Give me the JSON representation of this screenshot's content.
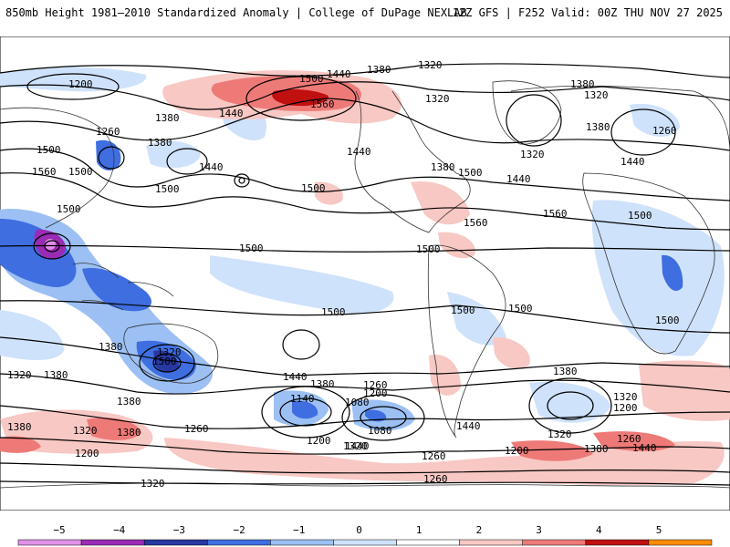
{
  "header": {
    "title": "850mb Height 1981–2010 Standardized Anomaly | College of DuPage NEXLAB",
    "run": "12Z GFS | F252 Valid: 00Z THU NOV 27 2025"
  },
  "contour_labels": [
    {
      "id": "c1",
      "text": "1200"
    },
    {
      "id": "c2",
      "text": "1260"
    },
    {
      "id": "c3",
      "text": "1380"
    },
    {
      "id": "c4",
      "text": "1500"
    },
    {
      "id": "c5",
      "text": "1560"
    },
    {
      "id": "c6",
      "text": "1500"
    },
    {
      "id": "c7",
      "text": "1380"
    },
    {
      "id": "c8",
      "text": "1440"
    },
    {
      "id": "c9",
      "text": "1500"
    },
    {
      "id": "c10",
      "text": "1440"
    },
    {
      "id": "c11",
      "text": "1380"
    },
    {
      "id": "c12",
      "text": "1320"
    },
    {
      "id": "c13",
      "text": "1500"
    },
    {
      "id": "c14",
      "text": "1560"
    },
    {
      "id": "c15",
      "text": "1440"
    },
    {
      "id": "c16",
      "text": "1440"
    },
    {
      "id": "c17",
      "text": "1320"
    },
    {
      "id": "c18",
      "text": "1380"
    },
    {
      "id": "c19",
      "text": "1500"
    },
    {
      "id": "c20",
      "text": "1440"
    },
    {
      "id": "c21",
      "text": "1560"
    },
    {
      "id": "c22",
      "text": "1380"
    },
    {
      "id": "c23",
      "text": "1320"
    },
    {
      "id": "c24",
      "text": "1320"
    },
    {
      "id": "c25",
      "text": "1380"
    },
    {
      "id": "c26",
      "text": "1260"
    },
    {
      "id": "c27",
      "text": "1440"
    },
    {
      "id": "c28",
      "text": "1560"
    },
    {
      "id": "c29",
      "text": "1500"
    },
    {
      "id": "c30",
      "text": "1500"
    },
    {
      "id": "c31",
      "text": "1500"
    },
    {
      "id": "c32",
      "text": "1500"
    },
    {
      "id": "c33",
      "text": "1500"
    },
    {
      "id": "c34",
      "text": "1500"
    },
    {
      "id": "c35",
      "text": "1500"
    },
    {
      "id": "c36",
      "text": "1500"
    },
    {
      "id": "c37",
      "text": "1500"
    },
    {
      "id": "c38",
      "text": "1380"
    },
    {
      "id": "c39",
      "text": "1320"
    },
    {
      "id": "c40",
      "text": "1500"
    },
    {
      "id": "c41",
      "text": "1440"
    },
    {
      "id": "c42",
      "text": "1380"
    },
    {
      "id": "c43",
      "text": "1260"
    },
    {
      "id": "c44",
      "text": "1200"
    },
    {
      "id": "c45",
      "text": "1140"
    },
    {
      "id": "c46",
      "text": "1080"
    },
    {
      "id": "c47",
      "text": "1080"
    },
    {
      "id": "c48",
      "text": "1200"
    },
    {
      "id": "c49",
      "text": "1320"
    },
    {
      "id": "c50",
      "text": "1440"
    },
    {
      "id": "c51",
      "text": "1380"
    },
    {
      "id": "c52",
      "text": "1320"
    },
    {
      "id": "c53",
      "text": "1200"
    },
    {
      "id": "c54",
      "text": "1320"
    },
    {
      "id": "c55",
      "text": "1380"
    },
    {
      "id": "c56",
      "text": "1440"
    },
    {
      "id": "c57",
      "text": "1260"
    },
    {
      "id": "c58",
      "text": "1380"
    },
    {
      "id": "c59",
      "text": "1260"
    },
    {
      "id": "c60",
      "text": "1320"
    },
    {
      "id": "c61",
      "text": "1260"
    },
    {
      "id": "c62",
      "text": "1200"
    },
    {
      "id": "c63",
      "text": "1380"
    },
    {
      "id": "c64",
      "text": "1320"
    },
    {
      "id": "c65",
      "text": "1260"
    },
    {
      "id": "c66",
      "text": "1320"
    },
    {
      "id": "c67",
      "text": "1380"
    },
    {
      "id": "c68",
      "text": "1200"
    },
    {
      "id": "c69",
      "text": "1440"
    },
    {
      "id": "c70",
      "text": "1380"
    }
  ],
  "colorbar": {
    "ticks": [
      "−5",
      "−4",
      "−3",
      "−2",
      "−1",
      "0",
      "1",
      "2",
      "3",
      "4",
      "5"
    ],
    "colors": [
      "#e090e8",
      "#9a2bb5",
      "#2838a0",
      "#3f6ee0",
      "#9cc0f4",
      "#cfe2fb",
      "#ffffff",
      "#f8c8c4",
      "#ee7a78",
      "#c01010",
      "#ff8c00"
    ]
  }
}
